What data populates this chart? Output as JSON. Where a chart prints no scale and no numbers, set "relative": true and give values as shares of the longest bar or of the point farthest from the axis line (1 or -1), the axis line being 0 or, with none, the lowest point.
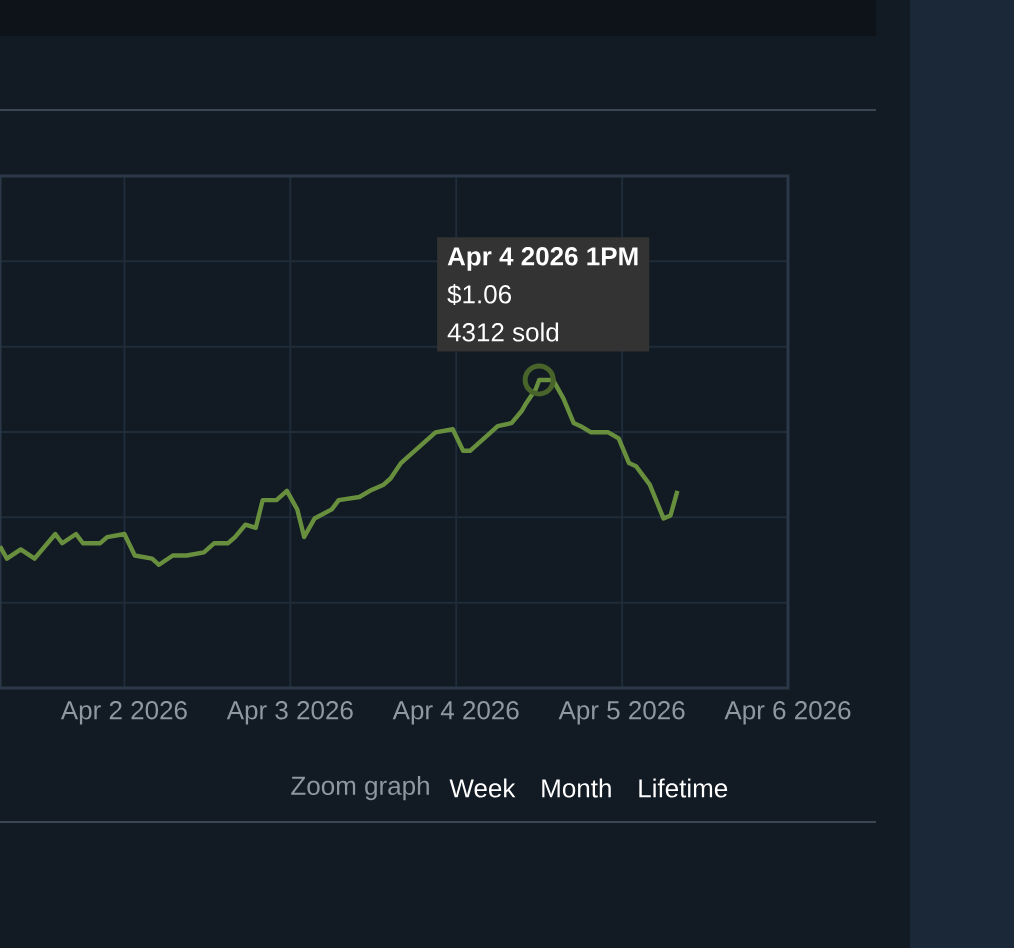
{
  "chart_data": {
    "type": "line",
    "relative": true,
    "grid": true,
    "x": [
      "2026-04-01T06:00",
      "2026-04-01T07:00",
      "2026-04-01T09:00",
      "2026-04-01T11:00",
      "2026-04-01T12:30",
      "2026-04-01T14:00",
      "2026-04-01T15:00",
      "2026-04-01T17:00",
      "2026-04-01T18:00",
      "2026-04-01T20:30",
      "2026-04-01T21:30",
      "2026-04-02T00:00",
      "2026-04-02T01:30",
      "2026-04-02T04:00",
      "2026-04-02T05:00",
      "2026-04-02T07:00",
      "2026-04-02T09:00",
      "2026-04-02T11:30",
      "2026-04-02T13:00",
      "2026-04-02T15:00",
      "2026-04-02T16:00",
      "2026-04-02T17:30",
      "2026-04-02T19:00",
      "2026-04-02T20:00",
      "2026-04-02T22:00",
      "2026-04-02T23:30",
      "2026-04-03T01:00",
      "2026-04-03T02:00",
      "2026-04-03T03:30",
      "2026-04-03T06:00",
      "2026-04-03T07:00",
      "2026-04-03T10:00",
      "2026-04-03T11:30",
      "2026-04-03T13:30",
      "2026-04-03T14:30",
      "2026-04-03T16:00",
      "2026-04-03T17:30",
      "2026-04-03T19:30",
      "2026-04-03T21:00",
      "2026-04-03T23:30",
      "2026-04-04T01:00",
      "2026-04-04T02:00",
      "2026-04-04T03:30",
      "2026-04-04T05:00",
      "2026-04-04T06:00",
      "2026-04-04T08:00",
      "2026-04-04T09:30",
      "2026-04-04T10:00",
      "2026-04-04T11:30",
      "2026-04-04T12:00",
      "2026-04-04T13:00",
      "2026-04-04T14:00",
      "2026-04-04T15:30",
      "2026-04-04T17:00",
      "2026-04-04T18:00",
      "2026-04-04T19:30",
      "2026-04-04T22:00",
      "2026-04-04T23:30",
      "2026-04-05T01:00",
      "2026-04-05T02:00",
      "2026-04-05T04:00",
      "2026-04-05T06:00",
      "2026-04-05T07:00",
      "2026-04-05T08:00"
    ],
    "series": [
      {
        "color": "#688f3e",
        "values": [
          0.46,
          0.42,
          0.45,
          0.42,
          0.46,
          0.5,
          0.47,
          0.5,
          0.47,
          0.47,
          0.49,
          0.5,
          0.43,
          0.42,
          0.4,
          0.43,
          0.43,
          0.44,
          0.47,
          0.47,
          0.49,
          0.53,
          0.52,
          0.61,
          0.61,
          0.64,
          0.58,
          0.49,
          0.55,
          0.58,
          0.61,
          0.62,
          0.64,
          0.66,
          0.68,
          0.73,
          0.76,
          0.8,
          0.83,
          0.84,
          0.77,
          0.77,
          0.8,
          0.83,
          0.85,
          0.86,
          0.9,
          0.92,
          0.97,
          1,
          1,
          1,
          0.94,
          0.86,
          0.85,
          0.83,
          0.83,
          0.81,
          0.73,
          0.72,
          0.66,
          0.55,
          0.56,
          0.64
        ]
      }
    ],
    "xlim": [
      "2026-04-01T06:00",
      "2026-04-06"
    ],
    "xticks": [
      {
        "value": "2026-04-02",
        "label": "Apr 2 2026"
      },
      {
        "value": "2026-04-03",
        "label": "Apr 3 2026"
      },
      {
        "value": "2026-04-04",
        "label": "Apr 4 2026"
      },
      {
        "value": "2026-04-05",
        "label": "Apr 5 2026"
      },
      {
        "value": "2026-04-06",
        "label": "Apr 6 2026"
      }
    ],
    "annotations": [
      "Apr 4 2026 1PM",
      "$1.06",
      "4312 sold",
      "Zoom graph",
      "Week",
      "Month",
      "Lifetime"
    ]
  }
}
